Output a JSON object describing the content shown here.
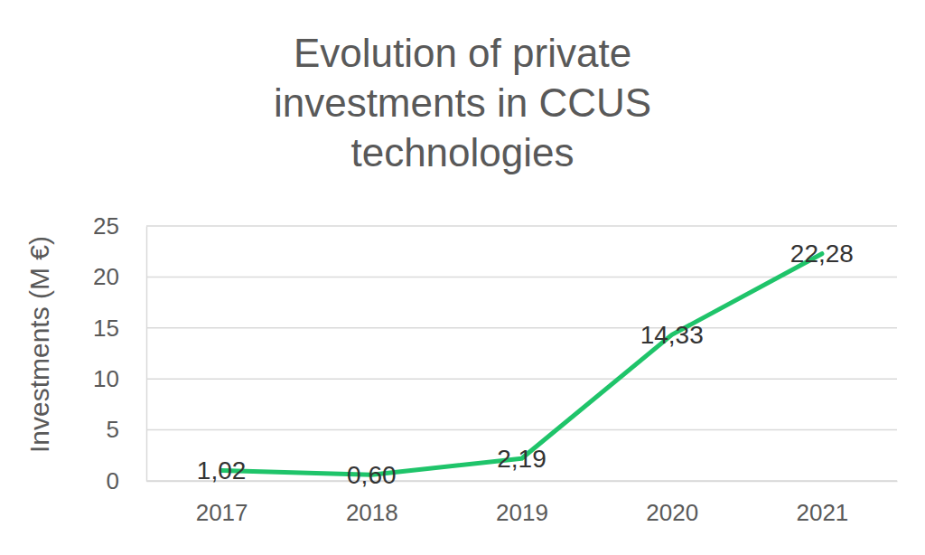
{
  "chart_data": {
    "type": "line",
    "title": "Evolution of private investments in CCUS technologies",
    "y_label": "Investments (M €)",
    "categories": [
      "2017",
      "2018",
      "2019",
      "2020",
      "2021"
    ],
    "values": [
      1.02,
      0.6,
      2.19,
      14.33,
      22.28
    ],
    "value_labels": [
      "1,02",
      "0,60",
      "2,19",
      "14,33",
      "22,28"
    ],
    "color": "#1fc46a",
    "ylim": [
      0,
      25
    ],
    "yticks": [
      0,
      5,
      10,
      15,
      20,
      25
    ],
    "grid": true,
    "data_labels": true
  }
}
